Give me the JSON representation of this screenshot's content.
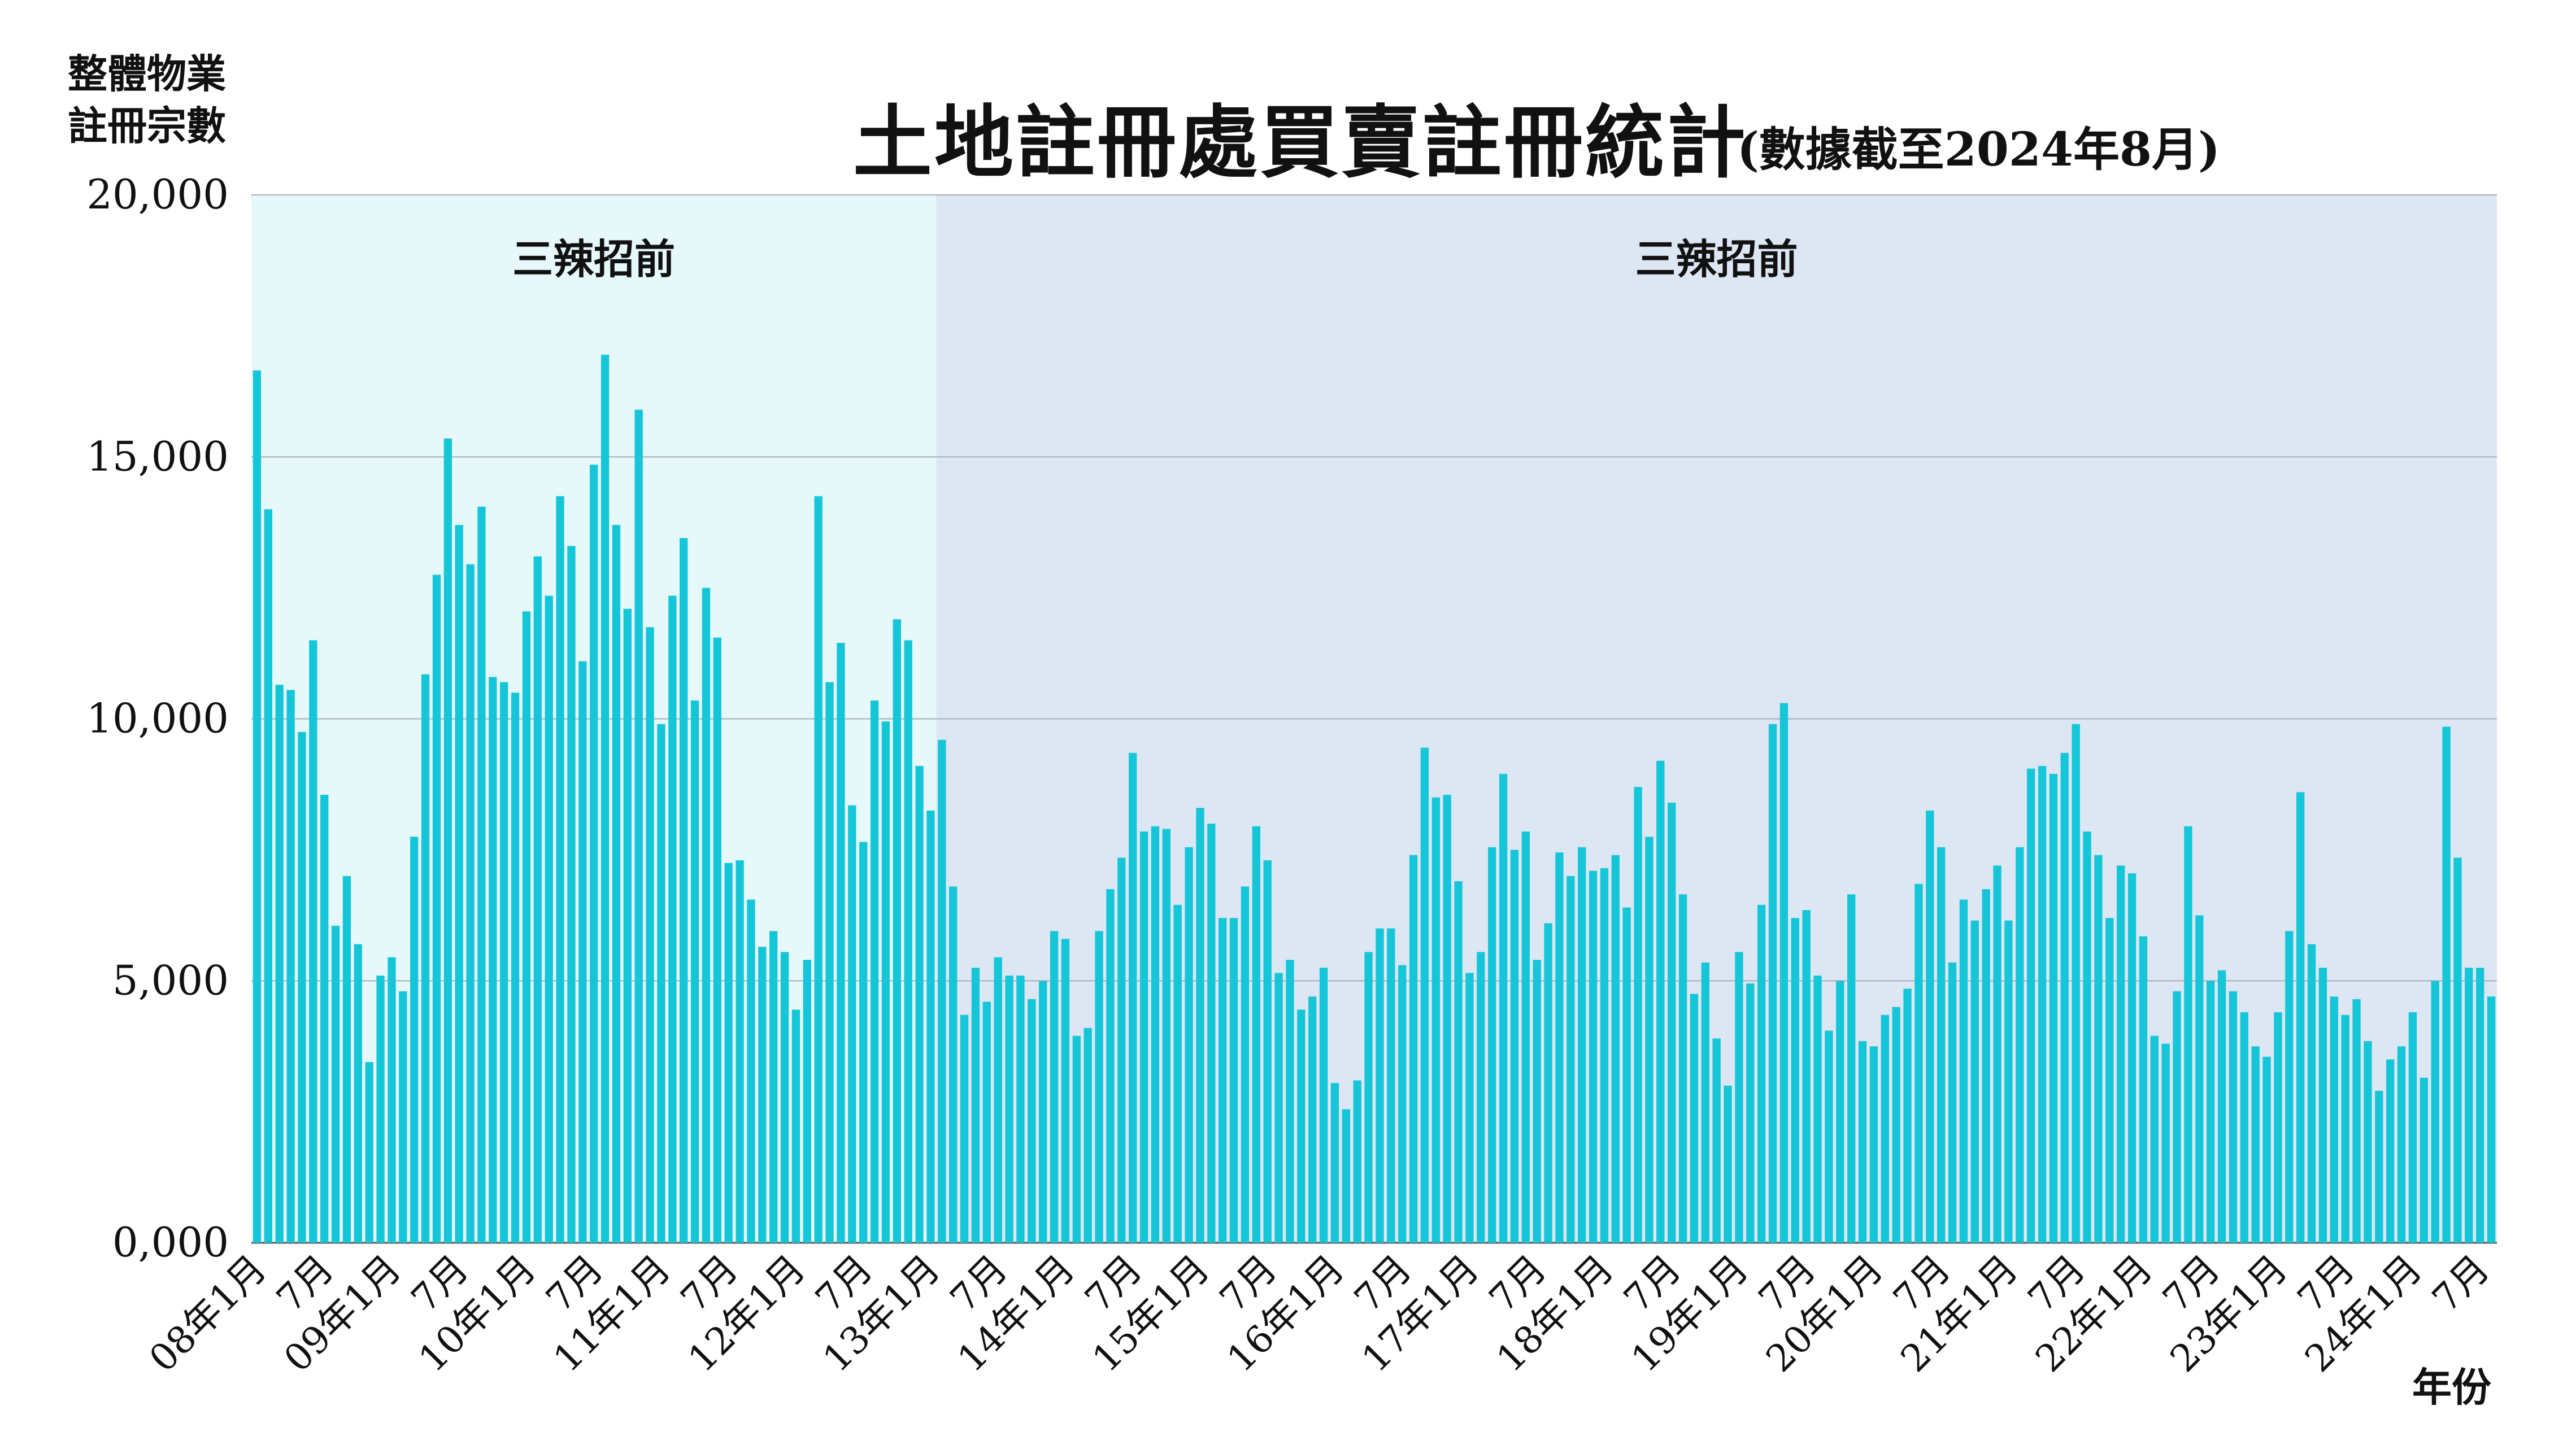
{
  "chart_data": {
    "type": "bar",
    "title": "土地註冊處買賣註冊統計",
    "subtitle": "(數據截至2024年8月)",
    "ylabel": [
      "整體物業",
      "註冊宗數"
    ],
    "xlabel": "年份",
    "ylim": [
      0,
      20000
    ],
    "yticks": [
      0,
      5000,
      10000,
      15000,
      20000
    ],
    "ytick_labels": [
      "0,000",
      "5,000",
      "10,000",
      "15,000",
      "20,000"
    ],
    "grid": true,
    "bar_color": "#14c6d7",
    "regions": [
      {
        "label": "三辣招前",
        "start": 0,
        "end": 61,
        "color": "#e6f8f9"
      },
      {
        "label": "三辣招前",
        "start": 61,
        "end": 200,
        "color": "#dde6f3"
      }
    ],
    "xtick_labels": [
      {
        "index": 0,
        "label": "08年1月"
      },
      {
        "index": 6,
        "label": "7月"
      },
      {
        "index": 12,
        "label": "09年1月"
      },
      {
        "index": 18,
        "label": "7月"
      },
      {
        "index": 24,
        "label": "10年1月"
      },
      {
        "index": 30,
        "label": "7月"
      },
      {
        "index": 36,
        "label": "11年1月"
      },
      {
        "index": 42,
        "label": "7月"
      },
      {
        "index": 48,
        "label": "12年1月"
      },
      {
        "index": 54,
        "label": "7月"
      },
      {
        "index": 60,
        "label": "13年1月"
      },
      {
        "index": 66,
        "label": "7月"
      },
      {
        "index": 72,
        "label": "14年1月"
      },
      {
        "index": 78,
        "label": "7月"
      },
      {
        "index": 84,
        "label": "15年1月"
      },
      {
        "index": 90,
        "label": "7月"
      },
      {
        "index": 96,
        "label": "16年1月"
      },
      {
        "index": 102,
        "label": "7月"
      },
      {
        "index": 108,
        "label": "17年1月"
      },
      {
        "index": 114,
        "label": "7月"
      },
      {
        "index": 120,
        "label": "18年1月"
      },
      {
        "index": 126,
        "label": "7月"
      },
      {
        "index": 132,
        "label": "19年1月"
      },
      {
        "index": 138,
        "label": "7月"
      },
      {
        "index": 144,
        "label": "20年1月"
      },
      {
        "index": 150,
        "label": "7月"
      },
      {
        "index": 156,
        "label": "21年1月"
      },
      {
        "index": 162,
        "label": "7月"
      },
      {
        "index": 168,
        "label": "22年1月"
      },
      {
        "index": 174,
        "label": "7月"
      },
      {
        "index": 180,
        "label": "23年1月"
      },
      {
        "index": 186,
        "label": "7月"
      },
      {
        "index": 192,
        "label": "24年1月"
      },
      {
        "index": 198,
        "label": "7月"
      }
    ],
    "values": [
      16650,
      14000,
      10650,
      10550,
      9750,
      11500,
      8550,
      6050,
      7000,
      5700,
      3450,
      5100,
      5450,
      4800,
      7750,
      10850,
      12750,
      15350,
      13700,
      12950,
      14050,
      10800,
      10700,
      10500,
      12050,
      13100,
      12350,
      14250,
      13300,
      11100,
      14850,
      16950,
      13700,
      12100,
      15900,
      11750,
      9900,
      12350,
      13450,
      10350,
      12500,
      11550,
      7250,
      7300,
      6550,
      5650,
      5950,
      5550,
      4450,
      5400,
      14250,
      10700,
      11450,
      8350,
      7650,
      10350,
      9950,
      11900,
      11500,
      9100,
      8250,
      9600,
      6800,
      4350,
      5250,
      4600,
      5450,
      5100,
      5100,
      4650,
      5000,
      5950,
      5800,
      3950,
      4100,
      5950,
      6750,
      7350,
      9350,
      7850,
      7950,
      7900,
      6450,
      7550,
      8300,
      8000,
      6200,
      6200,
      6800,
      7950,
      7300,
      5150,
      5400,
      4450,
      4700,
      5250,
      3050,
      2550,
      3100,
      5550,
      6000,
      6000,
      5300,
      7400,
      9450,
      8500,
      8550,
      6900,
      5150,
      5550,
      7550,
      8950,
      7500,
      7850,
      5400,
      6100,
      7450,
      7000,
      7550,
      7100,
      7150,
      7400,
      6400,
      8700,
      7750,
      9200,
      8400,
      6650,
      4750,
      5350,
      3900,
      3000,
      5550,
      4950,
      6450,
      9900,
      10300,
      6200,
      6350,
      5100,
      4050,
      5000,
      6650,
      3850,
      3750,
      4350,
      4500,
      4850,
      6850,
      8250,
      7550,
      5350,
      6550,
      6150,
      6750,
      7200,
      6150,
      7550,
      9050,
      9100,
      8950,
      9350,
      9900,
      7850,
      7400,
      6200,
      7200,
      7050,
      5850,
      3950,
      3800,
      4800,
      7950,
      6250,
      5000,
      5200,
      4800,
      4400,
      3750,
      3550,
      4400,
      5950,
      8600,
      5700,
      5250,
      4700,
      4350,
      4650,
      3850,
      2900,
      3500,
      3750,
      4400,
      3150,
      5000,
      9850,
      7350,
      5250,
      5250,
      4700
    ]
  }
}
